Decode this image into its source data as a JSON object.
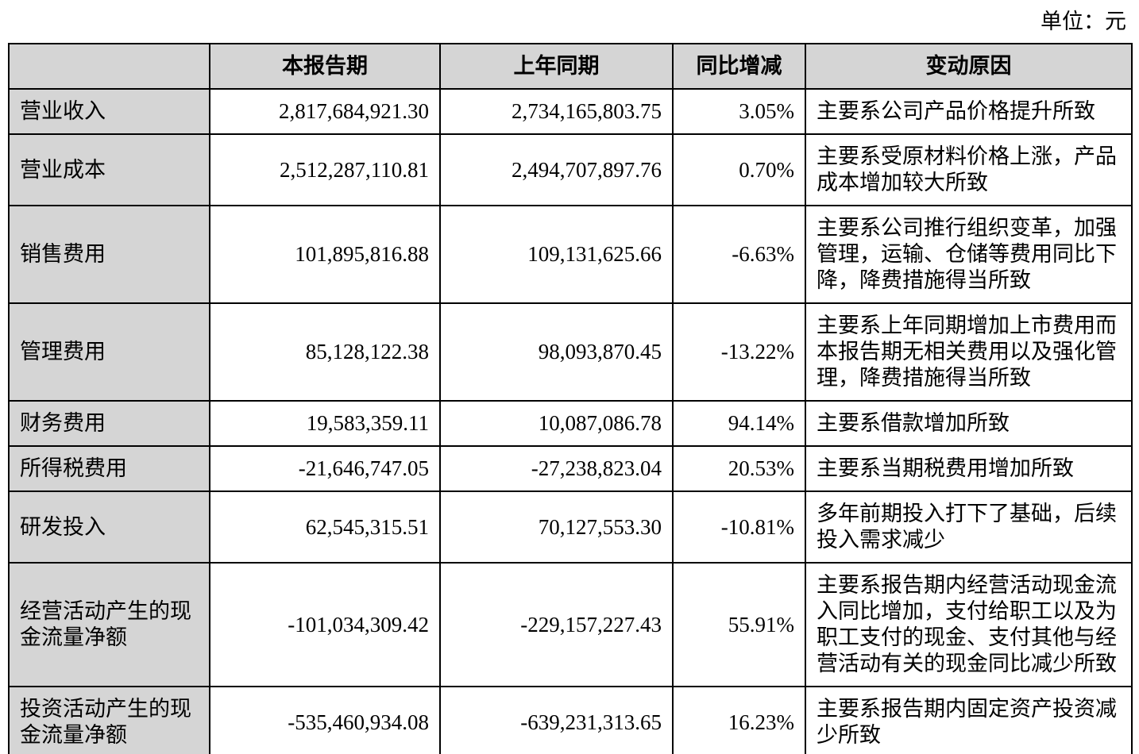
{
  "page": {
    "unit_label": "单位：元"
  },
  "colors": {
    "header_bg": "#d5d5d5",
    "label_bg": "#d5d5d5",
    "border": "#000000"
  },
  "table": {
    "headers": {
      "item": "",
      "current_period": "本报告期",
      "prior_period": "上年同期",
      "yoy_change": "同比增减",
      "change_reason": "变动原因"
    },
    "rows": [
      {
        "name": "营业收入",
        "current": "2,817,684,921.30",
        "prior": "2,734,165,803.75",
        "change": "3.05%",
        "reason": "主要系公司产品价格提升所致"
      },
      {
        "name": "营业成本",
        "current": "2,512,287,110.81",
        "prior": "2,494,707,897.76",
        "change": "0.70%",
        "reason": "主要系受原材料价格上涨，产品成本增加较大所致"
      },
      {
        "name": "销售费用",
        "current": "101,895,816.88",
        "prior": "109,131,625.66",
        "change": "-6.63%",
        "reason": "主要系公司推行组织变革，加强管理，运输、仓储等费用同比下降，降费措施得当所致"
      },
      {
        "name": "管理费用",
        "current": "85,128,122.38",
        "prior": "98,093,870.45",
        "change": "-13.22%",
        "reason": "主要系上年同期增加上市费用而本报告期无相关费用以及强化管理，降费措施得当所致"
      },
      {
        "name": "财务费用",
        "current": "19,583,359.11",
        "prior": "10,087,086.78",
        "change": "94.14%",
        "reason": "主要系借款增加所致"
      },
      {
        "name": "所得税费用",
        "current": "-21,646,747.05",
        "prior": "-27,238,823.04",
        "change": "20.53%",
        "reason": "主要系当期税费用增加所致"
      },
      {
        "name": "研发投入",
        "current": "62,545,315.51",
        "prior": "70,127,553.30",
        "change": "-10.81%",
        "reason": "多年前期投入打下了基础，后续投入需求减少"
      },
      {
        "name": "经营活动产生的现金流量净额",
        "current": "-101,034,309.42",
        "prior": "-229,157,227.43",
        "change": "55.91%",
        "reason": "主要系报告期内经营活动现金流入同比增加，支付给职工以及为职工支付的现金、支付其他与经营活动有关的现金同比减少所致"
      },
      {
        "name": "投资活动产生的现金流量净额",
        "current": "-535,460,934.08",
        "prior": "-639,231,313.65",
        "change": "16.23%",
        "reason": "主要系报告期内固定资产投资减少所致"
      }
    ]
  }
}
